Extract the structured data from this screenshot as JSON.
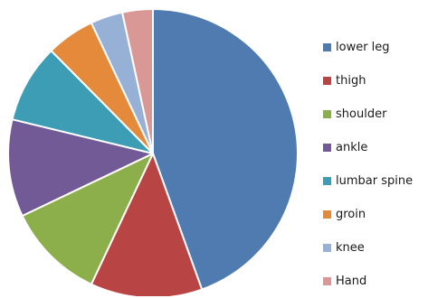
{
  "chart_data": {
    "type": "pie",
    "categories": [
      "lower leg",
      "thigh",
      "shoulder",
      "ankle",
      "lumbar spine",
      "groin",
      "knee",
      "Hand"
    ],
    "values": [
      44.5,
      12.5,
      10.9,
      10.9,
      8.8,
      5.4,
      3.6,
      3.4
    ],
    "colors": [
      "#4f7bb0",
      "#b84543",
      "#8cae4b",
      "#725a96",
      "#3c9db5",
      "#e58a3a",
      "#97b0d6",
      "#d99795"
    ],
    "start_angle_deg": 0,
    "direction": "clockwise",
    "legend_position": "right"
  }
}
